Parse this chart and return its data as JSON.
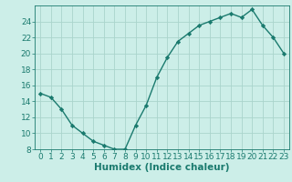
{
  "x": [
    0,
    1,
    2,
    3,
    4,
    5,
    6,
    7,
    8,
    9,
    10,
    11,
    12,
    13,
    14,
    15,
    16,
    17,
    18,
    19,
    20,
    21,
    22,
    23
  ],
  "y": [
    15,
    14.5,
    13,
    11,
    10,
    9,
    8.5,
    8,
    8,
    11,
    13.5,
    17,
    19.5,
    21.5,
    22.5,
    23.5,
    24,
    24.5,
    25,
    24.5,
    25.5,
    23.5,
    22,
    20
  ],
  "line_color": "#1a7a6e",
  "marker_color": "#1a7a6e",
  "bg_color": "#cceee8",
  "grid_color": "#aad4cc",
  "xlabel": "Humidex (Indice chaleur)",
  "ylim": [
    8,
    26
  ],
  "xlim": [
    -0.5,
    23.5
  ],
  "yticks": [
    8,
    10,
    12,
    14,
    16,
    18,
    20,
    22,
    24
  ],
  "xticks": [
    0,
    1,
    2,
    3,
    4,
    5,
    6,
    7,
    8,
    9,
    10,
    11,
    12,
    13,
    14,
    15,
    16,
    17,
    18,
    19,
    20,
    21,
    22,
    23
  ],
  "tick_label_fontsize": 6.5,
  "xlabel_fontsize": 7.5
}
